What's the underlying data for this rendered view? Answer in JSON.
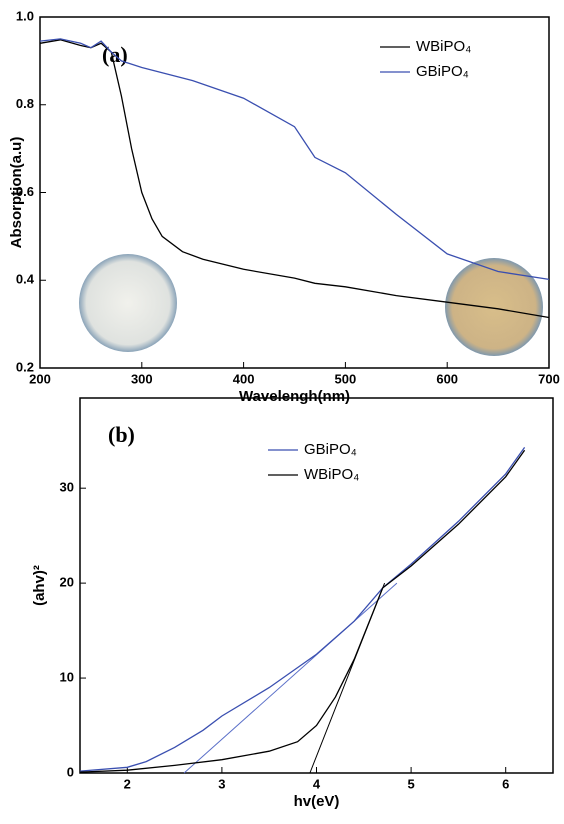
{
  "chart_data": [
    {
      "type": "line",
      "panel_label": "(a)",
      "x_label": "Wavelengh(nm)",
      "y_label": "Absorption(a.u)",
      "xlim": [
        200,
        700
      ],
      "xticks": [
        200,
        300,
        400,
        500,
        600,
        700
      ],
      "ylim": [
        0.2,
        1
      ],
      "yticks": [
        0.2,
        0.4,
        0.6,
        0.8,
        {
          "value": 1,
          "label": "1.0"
        }
      ],
      "series": [
        {
          "name": "WBiPO₄",
          "color": "#000000",
          "x": [
            200,
            220,
            240,
            250,
            260,
            270,
            280,
            290,
            300,
            310,
            320,
            340,
            360,
            400,
            450,
            470,
            500,
            550,
            600,
            650,
            700
          ],
          "values": [
            0.94,
            0.948,
            0.935,
            0.93,
            0.94,
            0.92,
            0.82,
            0.7,
            0.6,
            0.54,
            0.5,
            0.465,
            0.448,
            0.425,
            0.405,
            0.393,
            0.385,
            0.365,
            0.35,
            0.335,
            0.315
          ]
        },
        {
          "name": "GBiPO₄",
          "color": "#3a4fb0",
          "x": [
            200,
            220,
            240,
            250,
            260,
            270,
            280,
            300,
            350,
            400,
            450,
            470,
            500,
            550,
            600,
            650,
            700
          ],
          "values": [
            0.945,
            0.95,
            0.94,
            0.93,
            0.945,
            0.92,
            0.9,
            0.885,
            0.855,
            0.815,
            0.75,
            0.68,
            0.645,
            0.55,
            0.46,
            0.42,
            0.402
          ]
        }
      ]
    },
    {
      "type": "line",
      "panel_label": "(b)",
      "x_label": "hv(eV)",
      "y_label": "(ahv)²",
      "xlim": [
        1.5,
        6.5
      ],
      "xticks": [
        2,
        3,
        4,
        5,
        6
      ],
      "ylim": [
        0,
        39.5
      ],
      "yticks": [
        0,
        10,
        20,
        30
      ],
      "series": [
        {
          "name": "GBiPO₄",
          "color": "#3a4fb0",
          "x": [
            1.5,
            2,
            2.2,
            2.5,
            2.8,
            3,
            3.5,
            4,
            4.4,
            4.7,
            5,
            5.5,
            6,
            6.2
          ],
          "values": [
            0.2,
            0.6,
            1.2,
            2.7,
            4.5,
            6,
            9,
            12.5,
            16,
            19.5,
            22,
            26.5,
            31.5,
            34.3
          ]
        },
        {
          "name": "WBiPO₄",
          "color": "#000000",
          "x": [
            1.5,
            2,
            2.5,
            3,
            3.5,
            3.8,
            4,
            4.2,
            4.4,
            4.6,
            4.7,
            5,
            5.5,
            6,
            6.2
          ],
          "values": [
            0.1,
            0.3,
            0.8,
            1.4,
            2.3,
            3.3,
            5,
            8,
            12,
            17,
            19.5,
            21.8,
            26.2,
            31.2,
            34
          ]
        }
      ],
      "fit_lines": [
        {
          "color": "#5a6fc8",
          "x": [
            2.6,
            4.85
          ],
          "values": [
            0,
            20
          ]
        },
        {
          "color": "#000000",
          "x": [
            3.93,
            4.72
          ],
          "values": [
            0,
            20
          ]
        }
      ]
    }
  ]
}
